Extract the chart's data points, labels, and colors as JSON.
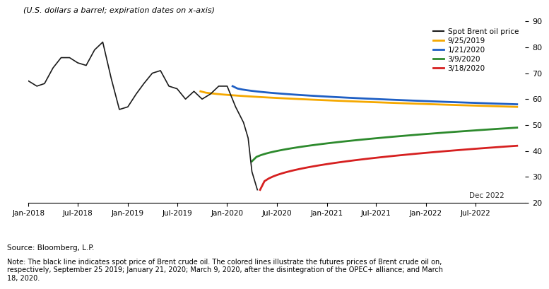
{
  "title_italic": "(U.S. dollars a barrel; expiration dates on x-axis)",
  "ylabel_right": "",
  "ylim": [
    20,
    90
  ],
  "yticks": [
    20,
    30,
    40,
    50,
    60,
    70,
    80,
    90
  ],
  "source_text": "Source: Bloomberg, L.P.",
  "note_text": "Note: The black line indicates spot price of Brent crude oil. The colored lines illustrate the futures prices of Brent crude oil on,\nrespectively, September 25 2019; January 21, 2020; March 9, 2020, after the disintegration of the OPEC+ alliance; and March\n18, 2020.",
  "legend_entries": [
    {
      "label": "Spot Brent oil price",
      "color": "#1a1a1a",
      "lw": 1.5
    },
    {
      "label": "9/25/2019",
      "color": "#f5a800",
      "lw": 2.0
    },
    {
      "label": "1/21/2020",
      "color": "#1f5fc4",
      "lw": 2.0
    },
    {
      "label": "3/9/2020",
      "color": "#2d8a2d",
      "lw": 2.0
    },
    {
      "label": "3/18/2020",
      "color": "#d62020",
      "lw": 2.0
    }
  ],
  "dec2022_label": "Dec 2022",
  "background_color": "#ffffff",
  "spot_color": "#1a1a1a",
  "forecast_9252019_color": "#f5a800",
  "forecast_1212020_color": "#1f5fc4",
  "forecast_392020_color": "#2d8a2d",
  "forecast_3182020_color": "#d62020"
}
